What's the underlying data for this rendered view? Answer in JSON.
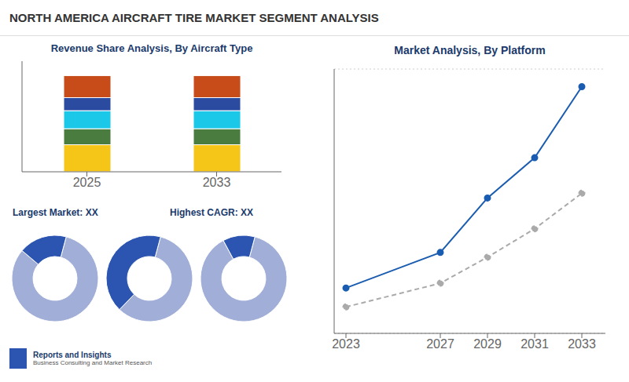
{
  "title": "NORTH AMERICA AIRCRAFT TIRE MARKET SEGMENT ANALYSIS",
  "annotations": [
    "Largest Market: XX",
    "Highest CAGR: XX",
    "Reports and Insights",
    "Business Consulting and Market Research"
  ],
  "chart_data": [
    {
      "type": "bar",
      "title": "Revenue Share Analysis, By Aircraft Type",
      "categories": [
        "2025",
        "2033"
      ],
      "stacked": true,
      "ylim": [
        0,
        1.15
      ],
      "yticks": [],
      "tick_labels": "x",
      "series": [
        {
          "color": "#f5c518",
          "values": [
            0.28125,
            0.28125
          ]
        },
        {
          "color": "#4a7c3f",
          "values": [
            0.16666666666666666,
            0.16666666666666666
          ]
        },
        {
          "color": "#1bc8e8",
          "values": [
            0.1875,
            0.1875
          ]
        },
        {
          "color": "#2b4ba0",
          "values": [
            0.13541666666666666,
            0.13541666666666666
          ]
        },
        {
          "color": "#c84b1a",
          "values": [
            0.22916666666666666,
            0.22916666666666666
          ]
        }
      ]
    },
    {
      "type": "donut",
      "values": [
        0.82,
        0.18
      ],
      "colors": [
        "#a0aed8",
        "#2b55b0"
      ]
    },
    {
      "type": "donut",
      "values": [
        0.58,
        0.42
      ],
      "colors": [
        "#a0aed8",
        "#2b55b0"
      ]
    },
    {
      "type": "donut",
      "values": [
        0.88,
        0.12
      ],
      "colors": [
        "#a0aed8",
        "#2b55b0"
      ]
    },
    {
      "type": "line",
      "title": "Market Analysis, By Platform",
      "x": [
        2023,
        2027,
        2029,
        2031,
        2033
      ],
      "xlim": [
        2022.5,
        2034
      ],
      "xticks": [
        2023,
        2027,
        2029,
        2031,
        2033
      ],
      "ylim": [
        1.084,
        12.244
      ],
      "yticks": [
        1.549,
        3.3005,
        5.052,
        6.8035,
        8.555,
        10.3065,
        12.058
      ],
      "grid": true,
      "tick_labels": "x",
      "series": [
        {
          "color": "#1a5cb0",
          "line_style": "solid",
          "marker": "circle",
          "values": [
            3.0,
            4.5,
            6.8,
            8.5,
            11.5
          ]
        },
        {
          "color": "#aaaaaa",
          "line_style": "dashed",
          "marker": "circle",
          "values": [
            2.2,
            3.2,
            4.3,
            5.5,
            7.0
          ]
        }
      ]
    }
  ]
}
